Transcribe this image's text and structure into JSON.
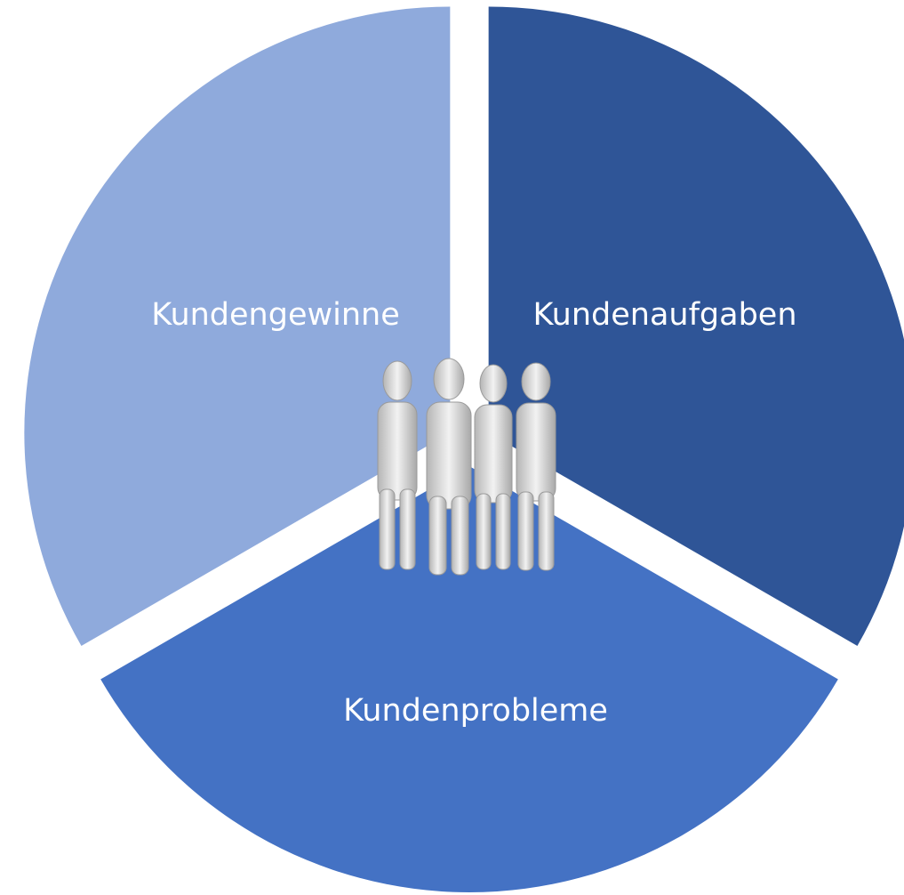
{
  "segments": [
    {
      "label": "Kundenaufgaben",
      "color": "#2f5597"
    },
    {
      "label": "Kundenprobleme",
      "color": "#4472c4"
    },
    {
      "label": "Kundengewinne",
      "color": "#8faadc"
    }
  ]
}
